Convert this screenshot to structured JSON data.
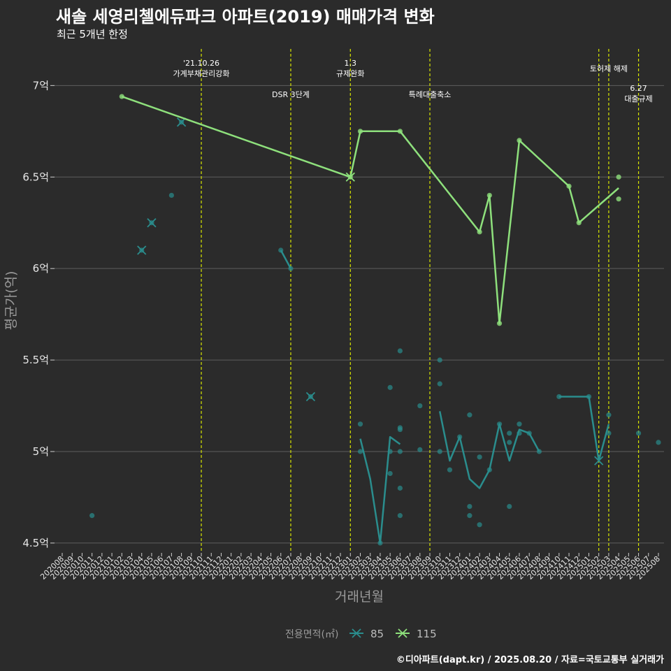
{
  "header": {
    "title": "새솔 세영리첼에듀파크 아파트(2019) 매매가격 변화",
    "subtitle": "최근 5개년 한정"
  },
  "credit": "©디아파트(dapt.kr) / 2025.08.20 / 자료=국토교통부 실거래가",
  "colors": {
    "background": "#2b2b2b",
    "grid": "#5e5e5e",
    "s85": "#2a8d8d",
    "s115": "#8ee07c",
    "vline": "#d8e600"
  },
  "chart_data": {
    "type": "line",
    "title": "새솔 세영리첼에듀파크 아파트(2019) 매매가격 변화",
    "xlabel": "거래년월",
    "ylabel": "평균가(억)",
    "ylim": [
      4.45,
      7.2
    ],
    "yticks": [
      4.5,
      5,
      5.5,
      6,
      6.5,
      7
    ],
    "ytick_labels": [
      "4.5억",
      "5억",
      "5.5억",
      "6억",
      "6.5억",
      "7억"
    ],
    "categories": [
      "202008",
      "202009",
      "202010",
      "202011",
      "202012",
      "202101",
      "202102",
      "202103",
      "202104",
      "202105",
      "202106",
      "202107",
      "202108",
      "202109",
      "202110",
      "202111",
      "202112",
      "202201",
      "202202",
      "202203",
      "202204",
      "202205",
      "202206",
      "202207",
      "202208",
      "202209",
      "202210",
      "202211",
      "202212",
      "202301",
      "202302",
      "202303",
      "202304",
      "202305",
      "202306",
      "202307",
      "202308",
      "202309",
      "202310",
      "202311",
      "202312",
      "202401",
      "202402",
      "202403",
      "202404",
      "202405",
      "202406",
      "202407",
      "202408",
      "202409",
      "202410",
      "202411",
      "202412",
      "202501",
      "202502",
      "202503",
      "202504",
      "202505",
      "202506",
      "202507",
      "202508"
    ],
    "legend": {
      "title": "전용면적(㎡)",
      "entries": [
        "85",
        "115"
      ]
    },
    "series": [
      {
        "name": "85",
        "line_segments": [
          [
            [
              "202206",
              6.1
            ],
            [
              "202207",
              6.0
            ]
          ],
          [
            [
              "202302",
              5.07
            ],
            [
              "202303",
              4.85
            ],
            [
              "202304",
              4.5
            ],
            [
              "202305",
              5.08
            ],
            [
              "202306",
              5.04
            ]
          ],
          [
            [
              "202310",
              5.22
            ],
            [
              "202311",
              4.95
            ],
            [
              "202312",
              5.08
            ],
            [
              "202401",
              4.85
            ],
            [
              "202402",
              4.8
            ],
            [
              "202403",
              4.9
            ],
            [
              "202404",
              5.15
            ],
            [
              "202405",
              4.95
            ],
            [
              "202406",
              5.12
            ],
            [
              "202407",
              5.1
            ],
            [
              "202408",
              5.0
            ]
          ],
          [
            [
              "202410",
              5.3
            ],
            [
              "202411",
              5.3
            ],
            [
              "202412",
              5.3
            ],
            [
              "202501",
              5.3
            ],
            [
              "202502",
              4.95
            ],
            [
              "202503",
              5.15
            ]
          ]
        ],
        "points": [
          [
            "202011",
            4.65
          ],
          [
            "202104",
            6.1
          ],
          [
            "202105",
            6.25
          ],
          [
            "202107",
            6.4
          ],
          [
            "202108",
            6.8
          ],
          [
            "202206",
            6.1
          ],
          [
            "202207",
            6.0
          ],
          [
            "202209",
            5.3
          ],
          [
            "202302",
            5.15
          ],
          [
            "202302",
            5.0
          ],
          [
            "202304",
            4.5
          ],
          [
            "202305",
            5.35
          ],
          [
            "202305",
            5.0
          ],
          [
            "202305",
            4.88
          ],
          [
            "202306",
            5.55
          ],
          [
            "202306",
            5.13
          ],
          [
            "202306",
            5.12
          ],
          [
            "202306",
            5.0
          ],
          [
            "202306",
            4.8
          ],
          [
            "202306",
            4.65
          ],
          [
            "202308",
            5.25
          ],
          [
            "202308",
            5.01
          ],
          [
            "202310",
            5.5
          ],
          [
            "202310",
            5.37
          ],
          [
            "202310",
            5.0
          ],
          [
            "202311",
            4.9
          ],
          [
            "202312",
            5.08
          ],
          [
            "202401",
            5.2
          ],
          [
            "202401",
            4.7
          ],
          [
            "202401",
            4.65
          ],
          [
            "202402",
            4.97
          ],
          [
            "202402",
            4.6
          ],
          [
            "202403",
            4.9
          ],
          [
            "202404",
            5.15
          ],
          [
            "202405",
            5.1
          ],
          [
            "202405",
            5.05
          ],
          [
            "202405",
            4.7
          ],
          [
            "202406",
            5.15
          ],
          [
            "202406",
            5.1
          ],
          [
            "202407",
            5.1
          ],
          [
            "202408",
            5.0
          ],
          [
            "202410",
            5.3
          ],
          [
            "202501",
            5.3
          ],
          [
            "202503",
            5.2
          ],
          [
            "202503",
            5.1
          ],
          [
            "202506",
            5.1
          ],
          [
            "202508",
            5.05
          ]
        ],
        "x_markers": [
          [
            "202104",
            6.1
          ],
          [
            "202105",
            6.25
          ],
          [
            "202108",
            6.8
          ],
          [
            "202209",
            5.3
          ],
          [
            "202502",
            4.95
          ]
        ]
      },
      {
        "name": "115",
        "line_segments": [
          [
            [
              "202102",
              6.94
            ],
            [
              "202301",
              6.5
            ],
            [
              "202302",
              6.75
            ],
            [
              "202306",
              6.75
            ],
            [
              "202402",
              6.2
            ],
            [
              "202403",
              6.4
            ],
            [
              "202404",
              5.7
            ],
            [
              "202406",
              6.7
            ],
            [
              "202411",
              6.45
            ],
            [
              "202412",
              6.25
            ],
            [
              "202504",
              6.44
            ]
          ]
        ],
        "points": [
          [
            "202102",
            6.94
          ],
          [
            "202301",
            6.5
          ],
          [
            "202302",
            6.75
          ],
          [
            "202306",
            6.75
          ],
          [
            "202402",
            6.2
          ],
          [
            "202403",
            6.4
          ],
          [
            "202404",
            5.7
          ],
          [
            "202406",
            6.7
          ],
          [
            "202411",
            6.45
          ],
          [
            "202412",
            6.25
          ],
          [
            "202504",
            6.5
          ],
          [
            "202504",
            6.38
          ]
        ],
        "x_markers": [
          [
            "202301",
            6.5
          ]
        ]
      }
    ],
    "annotations": [
      {
        "at": "202110",
        "text": [
          "'21.10.26",
          "가계부채관리강화"
        ],
        "row": "high"
      },
      {
        "at": "202207",
        "text": [
          "DSR 3단계"
        ],
        "row": "low"
      },
      {
        "at": "202301",
        "text": [
          "1.3",
          "규제완화"
        ],
        "row": "high"
      },
      {
        "at": "202309",
        "text": [
          "특례대출축소"
        ],
        "row": "low"
      },
      {
        "at": "202502",
        "text": [],
        "row": "none"
      },
      {
        "at": "202503",
        "text": [
          "토허제 해제"
        ],
        "row": "mid"
      },
      {
        "at": "202506",
        "text": [
          "6.27",
          "대출규제"
        ],
        "row": "lower"
      }
    ]
  }
}
